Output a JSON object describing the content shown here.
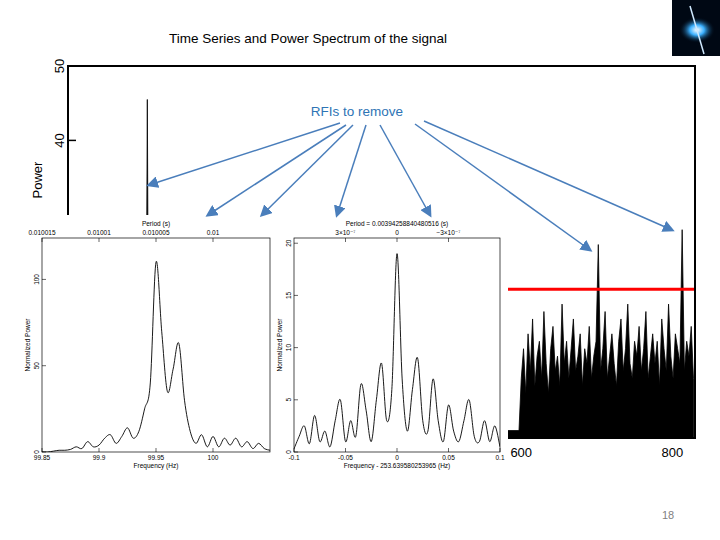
{
  "title": "Time Series and Power Spectrum of the signal",
  "annotation": "RFIs to remove",
  "page_number": "18",
  "chart_data": [
    {
      "type": "area",
      "ylabel": "Power",
      "color": "#000000",
      "x": [
        0,
        103,
        105,
        107,
        597,
        600,
        603,
        606,
        609,
        612,
        615,
        618,
        621,
        624,
        627,
        630,
        633,
        636,
        639,
        642,
        645,
        648,
        651,
        654,
        657,
        660,
        663,
        666,
        669,
        672,
        675,
        678,
        681,
        684,
        687,
        690,
        693,
        696,
        699,
        702,
        705,
        708,
        711,
        714,
        717,
        720,
        723,
        726,
        729,
        732,
        735,
        738,
        741,
        744,
        747,
        750,
        753,
        756,
        759,
        762,
        765,
        768,
        771,
        774,
        777,
        780,
        783,
        786,
        789,
        792,
        795,
        798,
        801,
        804,
        807,
        810,
        813,
        816,
        819,
        822,
        825,
        828
      ],
      "values": [
        1,
        1,
        45.5,
        1,
        1,
        8,
        12,
        6,
        14,
        9,
        16,
        7,
        11,
        13,
        8,
        17,
        10,
        6,
        12,
        15,
        9,
        11,
        7,
        18,
        10,
        13,
        8,
        12,
        16,
        9,
        11,
        14,
        7,
        12,
        10,
        15,
        8,
        11,
        13,
        26,
        9,
        12,
        17,
        8,
        11,
        14,
        10,
        7,
        13,
        16,
        9,
        12,
        18,
        10,
        8,
        13,
        11,
        15,
        9,
        12,
        17,
        8,
        11,
        14,
        10,
        13,
        7,
        16,
        12,
        9,
        18,
        11,
        8,
        14,
        12,
        10,
        28,
        9,
        13,
        11,
        15,
        8
      ],
      "threshold": 20,
      "xlim": [
        0,
        830
      ],
      "ylim": [
        0,
        50
      ],
      "xticks": [
        600,
        800
      ],
      "yticks": [
        40,
        50
      ]
    },
    {
      "type": "line",
      "title": "Period (s)",
      "xlabel": "Frequency (Hz)",
      "ylabel": "Normalized Power",
      "color": "#000000",
      "x": [
        99.85,
        99.855,
        99.86,
        99.865,
        99.87,
        99.875,
        99.88,
        99.885,
        99.89,
        99.895,
        99.9,
        99.905,
        99.91,
        99.915,
        99.92,
        99.925,
        99.93,
        99.935,
        99.94,
        99.945,
        99.95,
        99.955,
        99.96,
        99.965,
        99.97,
        99.975,
        99.98,
        99.985,
        99.99,
        99.995,
        100.0,
        100.005,
        100.01,
        100.015,
        100.02,
        100.025,
        100.03,
        100.035,
        100.04,
        100.045,
        100.05
      ],
      "values": [
        0,
        0,
        0.5,
        1,
        1,
        1.5,
        3,
        2,
        6,
        3,
        4,
        8,
        10,
        5,
        9,
        14,
        8,
        12,
        25,
        40,
        110,
        70,
        35,
        48,
        63,
        30,
        12,
        5,
        10,
        3,
        9,
        3,
        8,
        4,
        8,
        3,
        6,
        2,
        5,
        2,
        1
      ],
      "xlim": [
        99.85,
        100.05
      ],
      "ylim": [
        0,
        124
      ],
      "xticks": [
        99.85,
        99.9,
        99.95,
        100
      ],
      "yticks": [
        0,
        50,
        100
      ],
      "x2ticks": [
        {
          "value": 99.85,
          "label": "0.010015"
        },
        {
          "value": 99.9,
          "label": "0.01001"
        },
        {
          "value": 99.95,
          "label": "0.010005"
        },
        {
          "value": 100,
          "label": "0.01"
        }
      ]
    },
    {
      "type": "line",
      "title": "Period = 0.00394258840480516 (s)",
      "xlabel": "Frequency - 253.639580253965 (Hz)",
      "ylabel": "Normalized Power",
      "color": "#000000",
      "x": [
        -0.1,
        -0.095,
        -0.09,
        -0.085,
        -0.08,
        -0.075,
        -0.07,
        -0.065,
        -0.06,
        -0.055,
        -0.05,
        -0.045,
        -0.04,
        -0.035,
        -0.03,
        -0.025,
        -0.02,
        -0.015,
        -0.01,
        -0.005,
        0,
        0.005,
        0.01,
        0.015,
        0.02,
        0.025,
        0.03,
        0.035,
        0.04,
        0.045,
        0.05,
        0.055,
        0.06,
        0.065,
        0.07,
        0.075,
        0.08,
        0.085,
        0.09,
        0.095,
        0.1
      ],
      "values": [
        0.3,
        1.5,
        2.5,
        0.8,
        3.5,
        1,
        2,
        0.5,
        3,
        5,
        1,
        3,
        1.5,
        6.5,
        4,
        1,
        5,
        8.5,
        3,
        6,
        19,
        7,
        2,
        6,
        9,
        3,
        2,
        7,
        3,
        1,
        4.5,
        2,
        1,
        3,
        5,
        1.5,
        1,
        3,
        1,
        2.5,
        0.5
      ],
      "xlim": [
        -0.1,
        0.1
      ],
      "ylim": [
        0,
        20.5
      ],
      "xticks": [
        -0.1,
        -0.05,
        0,
        0.05,
        0.1
      ],
      "yticks": [
        0,
        5,
        10,
        15,
        20
      ],
      "x2ticks": [
        {
          "value": -0.05,
          "label": "3×10⁻⁷"
        },
        0,
        {
          "value": 0.05,
          "label": "−3×10⁻⁷"
        }
      ]
    }
  ]
}
